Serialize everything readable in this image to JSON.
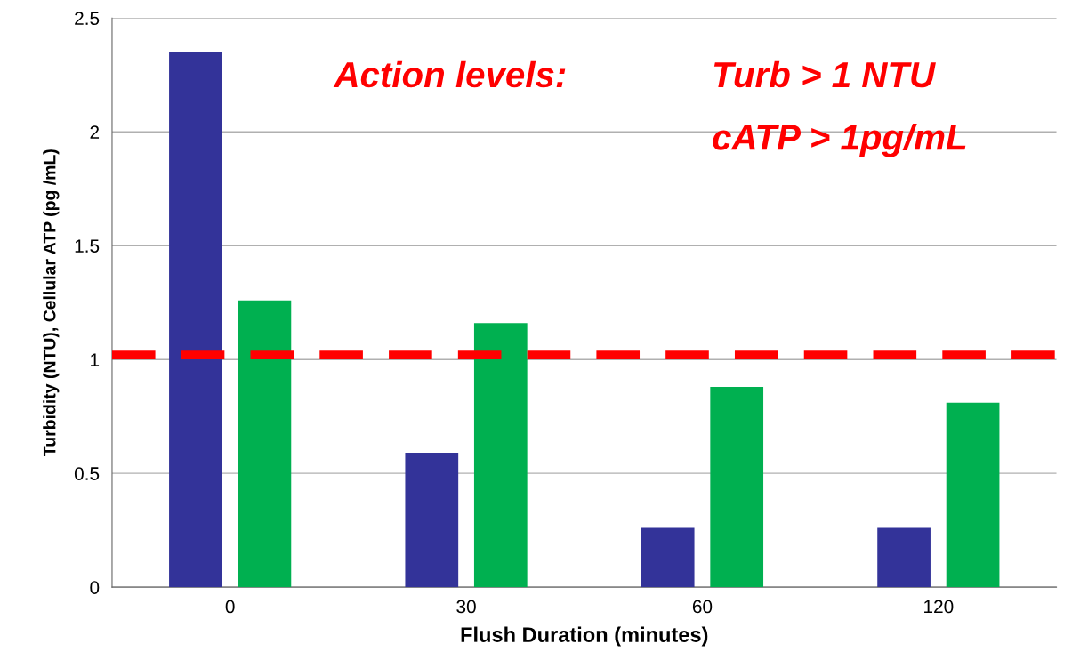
{
  "chart_data": {
    "type": "bar",
    "categories": [
      "0",
      "30",
      "60",
      "120"
    ],
    "series": [
      {
        "color": "#333399",
        "values": [
          2.35,
          0.59,
          0.26,
          0.26
        ]
      },
      {
        "color": "#00b050",
        "values": [
          1.26,
          1.16,
          0.88,
          0.81
        ]
      }
    ],
    "xlabel": "Flush Duration (minutes)",
    "ylabel": "Turbidity (NTU), Cellular ATP (pg /mL)",
    "ylim": [
      0,
      2.5
    ],
    "yticks": [
      0,
      0.5,
      1,
      1.5,
      2,
      2.5
    ],
    "grid": "y",
    "ref_lines": [
      {
        "axis": "y",
        "value": 1.02,
        "color": "#ff0000",
        "line_style": "dashed"
      }
    ],
    "annotations": [
      "Action levels:",
      "Turb > 1 NTU",
      "cATP > 1pg/mL"
    ]
  }
}
